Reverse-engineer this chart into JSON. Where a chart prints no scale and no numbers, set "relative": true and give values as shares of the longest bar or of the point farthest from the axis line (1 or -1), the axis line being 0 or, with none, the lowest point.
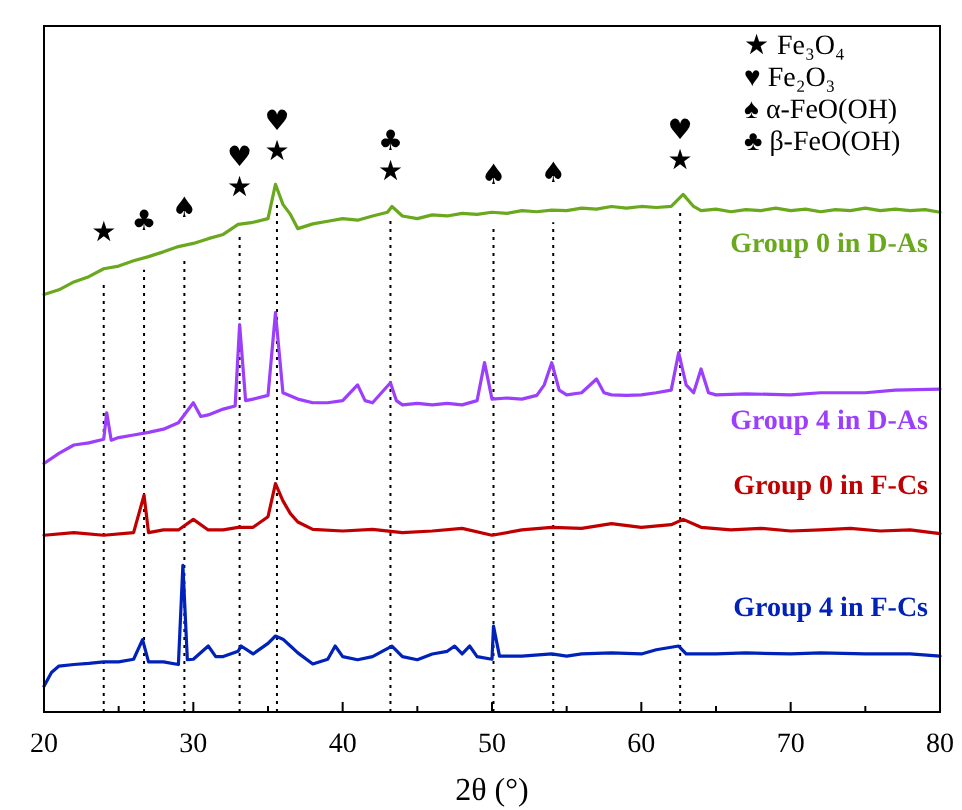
{
  "chart_data": {
    "type": "line",
    "relative": true,
    "xlabel": "2θ (°)",
    "xlim": [
      20,
      80
    ],
    "xticks": [
      20,
      {
        "value": 25,
        "label": null
      },
      30,
      {
        "value": 35,
        "label": null
      },
      40,
      {
        "value": 45,
        "label": null
      },
      50,
      {
        "value": 55,
        "label": null
      },
      60,
      {
        "value": 65,
        "label": null
      },
      70,
      {
        "value": 75,
        "label": null
      },
      80
    ],
    "line_style": "solid",
    "series": [
      {
        "name": "Group 0 in D-As",
        "color": "#6aa81e",
        "x": [
          20,
          21,
          22,
          23,
          24,
          25,
          26,
          27,
          28,
          29,
          30,
          31,
          32,
          33,
          34,
          35,
          35.5,
          36,
          36.5,
          37,
          38,
          39,
          40,
          41,
          42,
          43,
          43.3,
          44,
          45,
          46,
          47,
          48,
          49,
          50,
          51,
          52,
          53,
          54,
          55,
          56,
          57,
          58,
          59,
          60,
          61,
          62,
          62.8,
          63.5,
          64,
          65,
          66,
          67,
          68,
          69,
          70,
          71,
          72,
          73,
          74,
          75,
          76,
          77,
          78,
          79,
          80
        ],
        "values": [
          0.791,
          0.8,
          0.815,
          0.825,
          0.84,
          0.845,
          0.855,
          0.863,
          0.872,
          0.882,
          0.888,
          0.897,
          0.905,
          0.924,
          0.928,
          0.935,
          1.0,
          0.962,
          0.943,
          0.916,
          0.925,
          0.93,
          0.935,
          0.932,
          0.94,
          0.947,
          0.958,
          0.94,
          0.935,
          0.942,
          0.94,
          0.945,
          0.943,
          0.947,
          0.945,
          0.95,
          0.948,
          0.951,
          0.95,
          0.955,
          0.953,
          0.958,
          0.955,
          0.958,
          0.956,
          0.958,
          0.981,
          0.958,
          0.95,
          0.953,
          0.948,
          0.952,
          0.95,
          0.955,
          0.95,
          0.953,
          0.948,
          0.952,
          0.95,
          0.955,
          0.95,
          0.953,
          0.95,
          0.952,
          0.947
        ]
      },
      {
        "name": "Group 4 in D-As",
        "color": "#9b3ffc",
        "x": [
          20,
          21,
          22,
          23,
          24,
          24.2,
          24.5,
          25,
          26,
          27,
          28,
          29,
          30,
          30.5,
          31,
          32,
          32.8,
          33.1,
          33.5,
          34,
          35,
          35.5,
          36,
          37,
          38,
          39,
          40,
          41,
          41.5,
          42,
          43.2,
          43.6,
          44,
          45,
          46,
          47,
          48,
          49,
          49.5,
          50,
          51,
          52,
          53,
          53.5,
          54,
          54.5,
          55,
          56,
          57,
          57.5,
          58,
          59,
          60,
          61,
          62,
          62.5,
          63,
          63.5,
          64,
          64.5,
          65,
          67,
          70,
          72,
          75,
          77,
          80
        ],
        "values": [
          0.471,
          0.49,
          0.506,
          0.51,
          0.517,
          0.567,
          0.515,
          0.52,
          0.525,
          0.53,
          0.536,
          0.548,
          0.586,
          0.56,
          0.563,
          0.574,
          0.58,
          0.734,
          0.59,
          0.593,
          0.6,
          0.757,
          0.605,
          0.593,
          0.586,
          0.586,
          0.59,
          0.62,
          0.59,
          0.586,
          0.624,
          0.59,
          0.582,
          0.585,
          0.582,
          0.585,
          0.582,
          0.59,
          0.662,
          0.593,
          0.595,
          0.593,
          0.6,
          0.62,
          0.662,
          0.61,
          0.601,
          0.605,
          0.631,
          0.605,
          0.601,
          0.6,
          0.601,
          0.605,
          0.61,
          0.681,
          0.62,
          0.605,
          0.65,
          0.605,
          0.601,
          0.603,
          0.601,
          0.605,
          0.605,
          0.61,
          0.612
        ]
      },
      {
        "name": "Group 0 in F-Cs",
        "color": "#c00000",
        "x": [
          20,
          22,
          24,
          26,
          26.7,
          27,
          28,
          29,
          30,
          31,
          32,
          33,
          34,
          35,
          35.5,
          36,
          36.5,
          37,
          38,
          40,
          42,
          44,
          46,
          48,
          50,
          52,
          54,
          56,
          58,
          60,
          62,
          62.8,
          64,
          66,
          68,
          70,
          72,
          74,
          76,
          78,
          80
        ],
        "values": [
          0.335,
          0.34,
          0.335,
          0.34,
          0.411,
          0.34,
          0.345,
          0.345,
          0.365,
          0.345,
          0.345,
          0.35,
          0.35,
          0.37,
          0.433,
          0.4,
          0.376,
          0.36,
          0.346,
          0.343,
          0.346,
          0.34,
          0.343,
          0.348,
          0.335,
          0.345,
          0.35,
          0.348,
          0.357,
          0.35,
          0.355,
          0.365,
          0.35,
          0.345,
          0.348,
          0.343,
          0.345,
          0.348,
          0.343,
          0.345,
          0.338
        ]
      },
      {
        "name": "Group 4 in F-Cs",
        "color": "#0022b8",
        "x": [
          20,
          20.5,
          21,
          22,
          23,
          24,
          25,
          26,
          26.6,
          27,
          28,
          29,
          29.3,
          29.6,
          30,
          31,
          31.5,
          32,
          33,
          33.2,
          34,
          35,
          35.5,
          36,
          36.5,
          37,
          38,
          39,
          39.5,
          40,
          41,
          42,
          43.3,
          44,
          45,
          46,
          47,
          47.5,
          48,
          48.5,
          49,
          50,
          50.1,
          50.5,
          52,
          54,
          55,
          56,
          58,
          60,
          61,
          62.5,
          63,
          65,
          67,
          70,
          72,
          75,
          78,
          80
        ],
        "values": [
          0.049,
          0.075,
          0.087,
          0.09,
          0.092,
          0.095,
          0.095,
          0.1,
          0.137,
          0.095,
          0.095,
          0.09,
          0.278,
          0.099,
          0.1,
          0.125,
          0.105,
          0.105,
          0.115,
          0.125,
          0.11,
          0.13,
          0.144,
          0.138,
          0.125,
          0.112,
          0.091,
          0.1,
          0.125,
          0.105,
          0.099,
          0.105,
          0.125,
          0.105,
          0.099,
          0.11,
          0.115,
          0.125,
          0.11,
          0.125,
          0.105,
          0.1,
          0.163,
          0.106,
          0.106,
          0.11,
          0.106,
          0.11,
          0.112,
          0.11,
          0.118,
          0.125,
          0.11,
          0.11,
          0.112,
          0.11,
          0.112,
          0.11,
          0.11,
          0.106
        ]
      }
    ],
    "ref_lines": [
      {
        "axis": "x",
        "value": 24,
        "color": "#000000",
        "line_style": "dotted",
        "label": "★"
      },
      {
        "axis": "x",
        "value": 26.7,
        "color": "#000000",
        "line_style": "dotted",
        "label": "♣"
      },
      {
        "axis": "x",
        "value": 29.4,
        "color": "#000000",
        "line_style": "dotted",
        "label": "♠"
      },
      {
        "axis": "x",
        "value": 33.1,
        "color": "#000000",
        "line_style": "dotted",
        "label": "♥ ★"
      },
      {
        "axis": "x",
        "value": 35.6,
        "color": "#000000",
        "line_style": "dotted",
        "label": "♥ ★"
      },
      {
        "axis": "x",
        "value": 43.2,
        "color": "#000000",
        "line_style": "dotted",
        "label": "♣ ★"
      },
      {
        "axis": "x",
        "value": 50.1,
        "color": "#000000",
        "line_style": "dotted",
        "label": "♠"
      },
      {
        "axis": "x",
        "value": 54.1,
        "color": "#000000",
        "line_style": "dotted",
        "label": "♠"
      },
      {
        "axis": "x",
        "value": 62.6,
        "color": "#000000",
        "line_style": "dotted",
        "label": "♥ ★"
      }
    ],
    "annotations": [
      "★ Fe₃O₄",
      "♥ Fe₂O₃",
      "♠ α-FeO(OH)",
      "♣ β-FeO(OH)"
    ]
  }
}
